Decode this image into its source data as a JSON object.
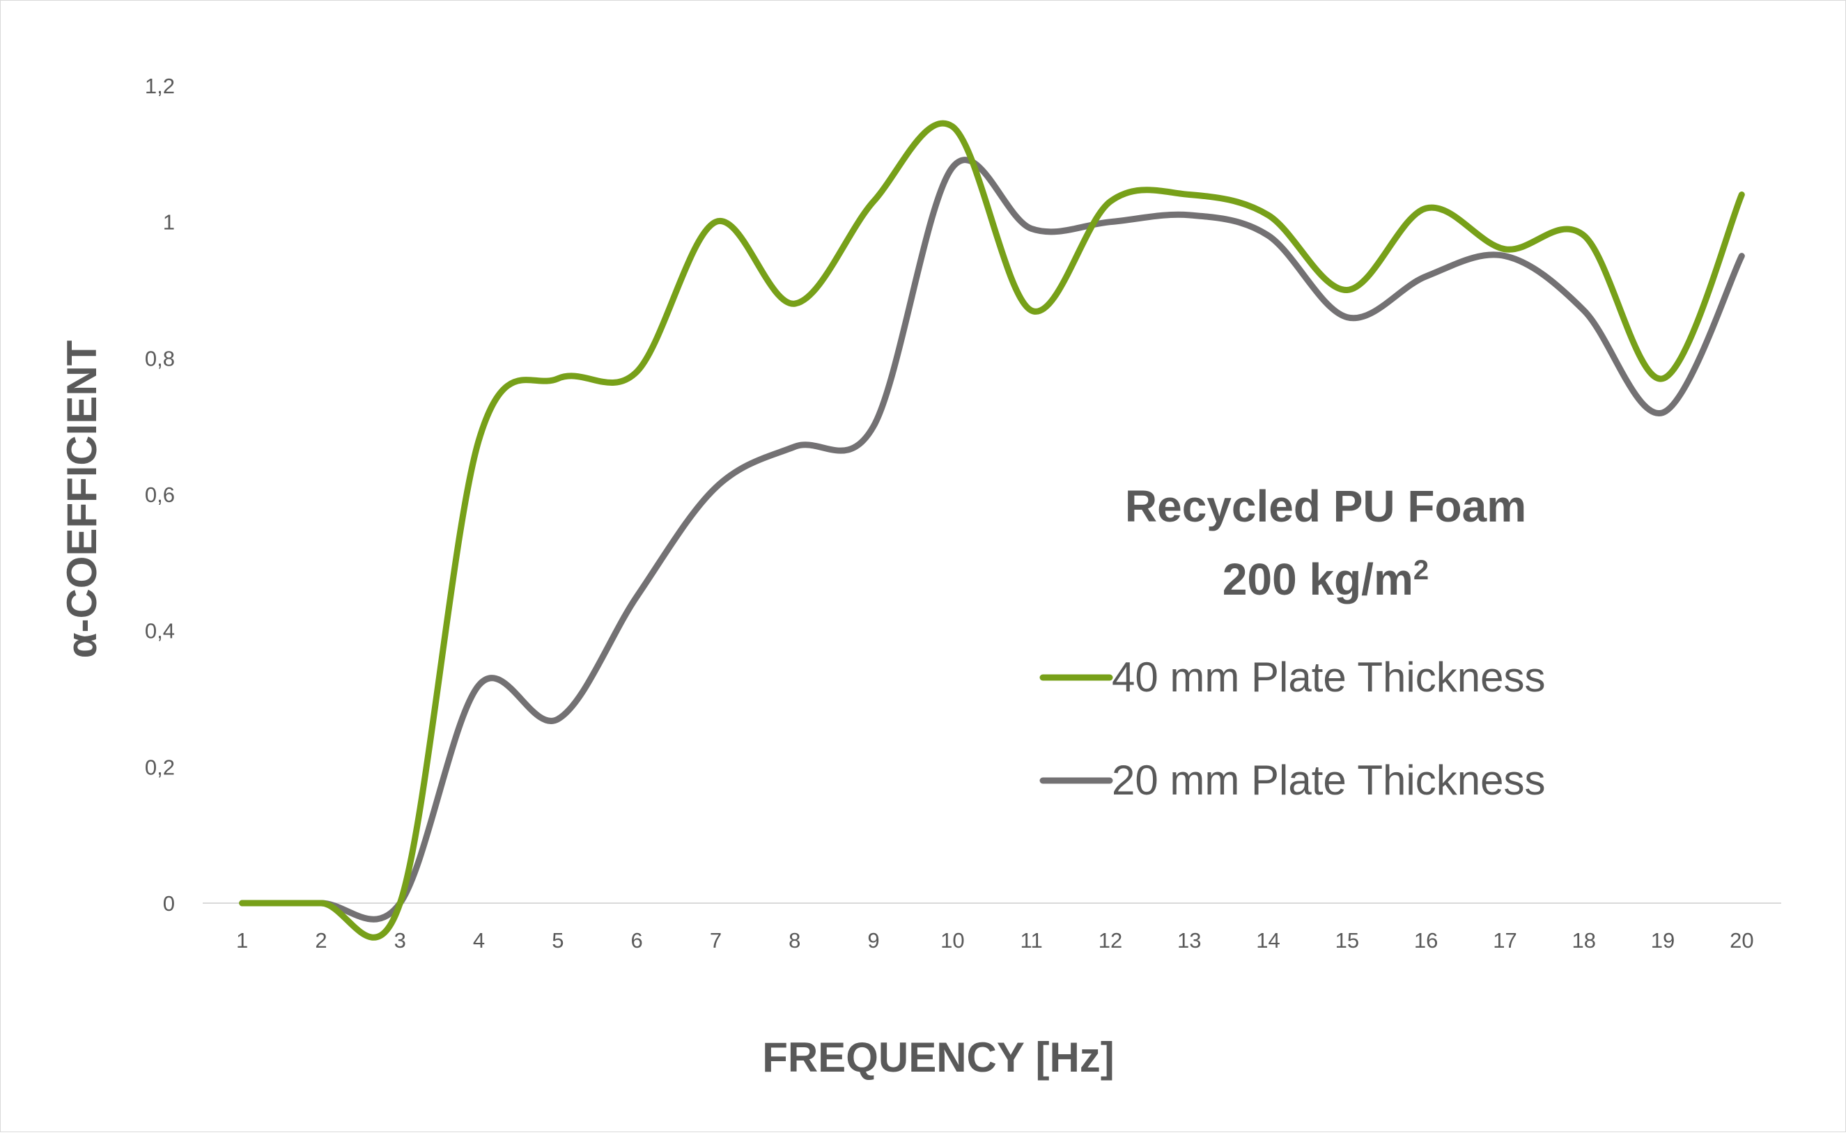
{
  "chart_data": {
    "type": "line",
    "title": "",
    "xlabel": "FREQUENCY [Hz]",
    "ylabel": "α-COEFFICIENT",
    "categories": [
      "1",
      "2",
      "3",
      "4",
      "5",
      "6",
      "7",
      "8",
      "9",
      "10",
      "11",
      "12",
      "13",
      "14",
      "15",
      "16",
      "17",
      "18",
      "19",
      "20"
    ],
    "y_ticks": [
      "0",
      "0,2",
      "0,4",
      "0,6",
      "0,8",
      "1",
      "1,2"
    ],
    "ylim": [
      0,
      1.2
    ],
    "grid": false,
    "legend_position": "right",
    "annotation": {
      "line1": "Recycled PU Foam",
      "line2_prefix": "200 kg/m",
      "line2_sup": "2"
    },
    "series": [
      {
        "name": "40 mm Plate Thickness",
        "color": "#77A019",
        "values": [
          0,
          0,
          0,
          0.68,
          0.77,
          0.78,
          1.0,
          0.88,
          1.03,
          1.14,
          0.87,
          1.03,
          1.04,
          1.01,
          0.9,
          1.02,
          0.96,
          0.98,
          0.77,
          1.04
        ]
      },
      {
        "name": "20 mm Plate Thickness",
        "color": "#737173",
        "values": [
          0,
          0,
          0,
          0.32,
          0.27,
          0.45,
          0.61,
          0.67,
          0.7,
          1.08,
          0.99,
          1.0,
          1.01,
          0.98,
          0.86,
          0.92,
          0.95,
          0.87,
          0.72,
          0.95
        ]
      }
    ]
  }
}
